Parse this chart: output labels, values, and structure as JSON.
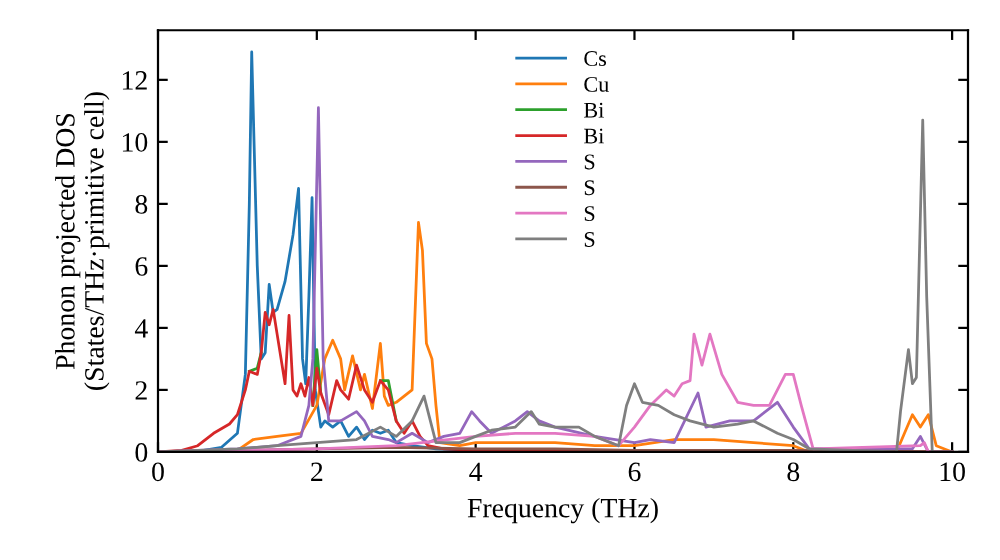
{
  "chart_data": {
    "type": "line",
    "xlabel": "Frequency (THz)",
    "ylabel": "Phonon projected DOS\n(States/THz·primitive cell)",
    "xlim": [
      0,
      10.2
    ],
    "ylim": [
      0,
      13.6
    ],
    "xticks": [
      0,
      2,
      4,
      6,
      8,
      10
    ],
    "yticks": [
      0,
      2,
      4,
      6,
      8,
      10,
      12
    ],
    "grid": false,
    "legend": "top",
    "marker": "none",
    "line_style": "solid",
    "series": [
      {
        "name": "Cs",
        "color": "#1f77b4",
        "x": [
          0,
          0.5,
          0.8,
          1.0,
          1.1,
          1.15,
          1.18,
          1.25,
          1.3,
          1.35,
          1.4,
          1.45,
          1.5,
          1.6,
          1.7,
          1.77,
          1.82,
          1.86,
          1.9,
          1.94,
          1.98,
          2.05,
          2.1,
          2.2,
          2.3,
          2.4,
          2.5,
          2.6,
          2.7,
          2.8,
          2.9,
          3.0,
          3.2,
          3.5,
          4
        ],
        "values": [
          0,
          0.02,
          0.15,
          0.6,
          2.5,
          8,
          12.9,
          6,
          3.0,
          3.2,
          5.4,
          4.5,
          4.6,
          5.5,
          7,
          8.5,
          3,
          2.2,
          5,
          8.2,
          2,
          0.8,
          1.0,
          0.8,
          1.0,
          0.5,
          0.8,
          0.4,
          0.7,
          0.6,
          0.7,
          0.3,
          0.2,
          0.1,
          0.05
        ]
      },
      {
        "name": "Cu",
        "color": "#ff7f0e",
        "x": [
          0,
          1,
          1.2,
          1.5,
          1.8,
          2.0,
          2.1,
          2.2,
          2.3,
          2.35,
          2.45,
          2.55,
          2.6,
          2.7,
          2.8,
          2.85,
          2.9,
          3.0,
          3.1,
          3.2,
          3.28,
          3.33,
          3.38,
          3.45,
          3.5,
          3.55,
          3.8,
          4,
          4.5,
          5,
          5.5,
          6,
          6.5,
          7,
          7.5,
          8,
          8.2,
          9.3,
          9.4,
          9.5,
          9.6,
          9.7,
          9.8,
          10
        ],
        "values": [
          0,
          0.05,
          0.4,
          0.5,
          0.6,
          1.5,
          3.0,
          3.6,
          3.0,
          2.0,
          3.1,
          2.0,
          2.5,
          1.4,
          3.5,
          1.8,
          1.5,
          1.6,
          1.8,
          2.0,
          7.4,
          6.5,
          3.5,
          3.0,
          1.5,
          0.3,
          0.2,
          0.3,
          0.3,
          0.3,
          0.2,
          0.2,
          0.4,
          0.4,
          0.3,
          0.2,
          0,
          0,
          0.6,
          1.2,
          0.8,
          1.2,
          0.2,
          0
        ]
      },
      {
        "name": "Bi",
        "color": "#2ca02c",
        "x": [
          1.15,
          1.25,
          1.3,
          null,
          1.95,
          2.0,
          2.05,
          null,
          2.8,
          2.9,
          3.0
        ],
        "values": [
          2.6,
          2.7,
          3.2,
          null,
          1.5,
          3.3,
          1.9,
          null,
          2.3,
          2.3,
          1.0
        ]
      },
      {
        "name": "Bi",
        "color": "#d62728",
        "x": [
          0,
          0.3,
          0.5,
          0.7,
          0.9,
          1.0,
          1.1,
          1.15,
          1.25,
          1.3,
          1.35,
          1.4,
          1.45,
          1.5,
          1.6,
          1.65,
          1.7,
          1.75,
          1.8,
          1.85,
          1.9,
          1.95,
          2.0,
          2.05,
          2.15,
          2.25,
          2.3,
          2.4,
          2.5,
          2.6,
          2.7,
          2.8,
          2.9,
          3.0,
          3.1,
          3.2,
          3.3,
          3.4,
          3.6,
          4,
          5,
          6,
          7,
          8,
          9,
          10
        ],
        "values": [
          0,
          0.05,
          0.2,
          0.6,
          0.9,
          1.2,
          2.0,
          2.6,
          2.5,
          3.2,
          4.5,
          4.1,
          4.6,
          3.8,
          2.2,
          4.4,
          2.0,
          1.8,
          2.2,
          1.8,
          2.4,
          1.5,
          2.7,
          1.9,
          1.2,
          2.3,
          2.0,
          1.7,
          2.8,
          2.0,
          1.6,
          2.3,
          2.0,
          1.0,
          0.6,
          1.0,
          0.5,
          0.2,
          0.1,
          0.05,
          0.05,
          0.05,
          0.05,
          0.02,
          0,
          0
        ]
      },
      {
        "name": "S",
        "color": "#9467bd",
        "x": [
          0,
          1,
          1.5,
          1.8,
          1.9,
          1.95,
          2.02,
          2.08,
          2.15,
          2.3,
          2.5,
          2.6,
          2.7,
          2.9,
          3.0,
          3.2,
          3.4,
          3.6,
          3.8,
          3.95,
          4.05,
          4.2,
          4.5,
          4.65,
          4.8,
          5.0,
          5.5,
          6,
          6.2,
          6.5,
          6.8,
          6.9,
          7.2,
          7.5,
          7.8,
          8.0,
          8.2,
          9.5,
          9.6,
          9.7,
          10
        ],
        "values": [
          0,
          0.1,
          0.2,
          0.5,
          1.5,
          3,
          11.1,
          3,
          1.0,
          1.0,
          1.3,
          1.0,
          0.5,
          0.4,
          0.3,
          0.6,
          0.3,
          0.5,
          0.6,
          1.3,
          1.0,
          0.6,
          1.0,
          1.3,
          1.0,
          0.8,
          0.5,
          0.3,
          0.4,
          0.3,
          1.9,
          0.8,
          1.0,
          1.0,
          1.6,
          0.8,
          0.1,
          0.1,
          0.5,
          0,
          0
        ]
      },
      {
        "name": "S",
        "color": "#8c564b",
        "x": [
          0,
          2,
          3,
          4,
          5,
          6,
          8,
          10
        ],
        "values": [
          0,
          0.1,
          0.15,
          0.1,
          0.1,
          0.05,
          0.05,
          0
        ]
      },
      {
        "name": "S",
        "color": "#e377c2",
        "x": [
          0,
          2,
          3,
          4,
          4.5,
          5,
          5.5,
          5.8,
          6,
          6.2,
          6.4,
          6.5,
          6.6,
          6.7,
          6.75,
          6.85,
          6.95,
          7.1,
          7.3,
          7.5,
          7.7,
          7.9,
          8.0,
          8.1,
          8.25,
          9.6,
          9.65,
          9.7,
          10
        ],
        "values": [
          0,
          0.1,
          0.2,
          0.5,
          0.6,
          0.6,
          0.5,
          0.2,
          0.8,
          1.5,
          2.0,
          1.8,
          2.2,
          2.3,
          3.8,
          2.8,
          3.8,
          2.5,
          1.6,
          1.5,
          1.5,
          2.5,
          2.5,
          1.5,
          0.1,
          0.2,
          0.3,
          0,
          0
        ]
      },
      {
        "name": "S",
        "color": "#7f7f7f",
        "x": [
          0,
          1,
          1.5,
          2,
          2.5,
          2.8,
          3.0,
          3.2,
          3.35,
          3.5,
          3.8,
          4.0,
          4.2,
          4.5,
          4.7,
          4.8,
          5,
          5.3,
          5.5,
          5.8,
          5.9,
          6.0,
          6.1,
          6.3,
          6.5,
          6.7,
          7,
          7.3,
          7.5,
          7.8,
          8.0,
          8.2,
          9.3,
          9.35,
          9.45,
          9.5,
          9.55,
          9.63,
          9.68,
          9.75,
          10
        ],
        "values": [
          0,
          0.1,
          0.2,
          0.3,
          0.4,
          0.8,
          0.5,
          1.0,
          1.8,
          0.3,
          0.3,
          0.5,
          0.7,
          0.8,
          1.3,
          0.9,
          0.8,
          0.8,
          0.5,
          0.2,
          1.5,
          2.2,
          1.6,
          1.5,
          1.2,
          1.0,
          0.8,
          0.9,
          1.0,
          0.6,
          0.4,
          0.1,
          0,
          1.3,
          3.3,
          2.2,
          2.4,
          10.7,
          5,
          0,
          0
        ]
      }
    ]
  }
}
